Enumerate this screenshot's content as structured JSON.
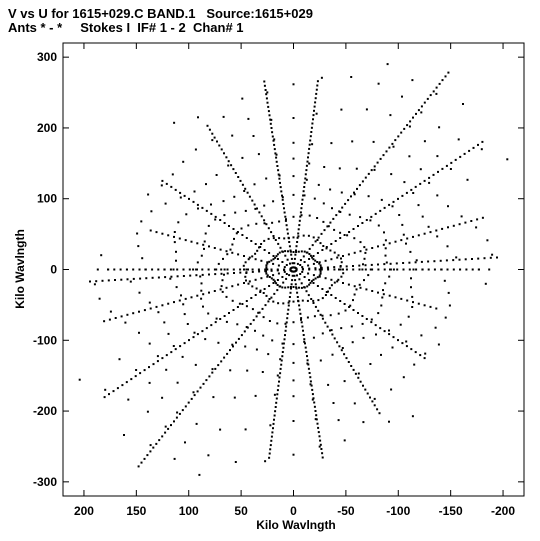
{
  "header": {
    "line1": "V vs U for 1615+029.C BAND.1   Source:1615+029",
    "line2": "Ants * - *     Stokes I  IF# 1 - 2  Chan# 1"
  },
  "chart_data": {
    "type": "scatter",
    "title": "V vs U for 1615+029.C BAND.1   Source:1615+029",
    "subtitle": "Ants * - *     Stokes I  IF# 1 - 2  Chan# 1",
    "xlabel": "Kilo Wavlngth",
    "ylabel": "Kilo Wavlngth",
    "xlim": [
      220,
      -220
    ],
    "ylim": [
      -320,
      320
    ],
    "x_ticks": [
      200,
      150,
      100,
      50,
      0,
      -50,
      -100,
      -150,
      -200
    ],
    "x_tick_labels": [
      "200",
      "150",
      "100",
      "50",
      "0",
      "-50",
      "-100",
      "-150",
      "-200"
    ],
    "y_ticks": [
      300,
      200,
      100,
      0,
      -100,
      -200,
      -300
    ],
    "y_tick_labels": [
      "300",
      "200",
      "100",
      "0",
      "-100",
      "-200",
      "-300"
    ],
    "grid": false,
    "marker_color": "#000000",
    "background": "#ffffff",
    "spokes_upper": [
      {
        "angle_deg": 0.0,
        "radius_max": 180
      },
      {
        "angle_deg": 22.0,
        "radius_max": 150
      },
      {
        "angle_deg": 45.0,
        "radius_max": 180
      },
      {
        "angle_deg": 68.0,
        "radius_max": 220
      },
      {
        "angle_deg": 84.0,
        "radius_max": 270
      },
      {
        "angle_deg": 95.0,
        "radius_max": 270
      },
      {
        "angle_deg": 118.0,
        "radius_max": 320
      },
      {
        "angle_deg": 135.0,
        "radius_max": 260
      },
      {
        "angle_deg": 158.0,
        "radius_max": 200
      },
      {
        "angle_deg": 175.0,
        "radius_max": 200
      }
    ],
    "arc_radii": [
      25,
      45,
      70,
      95,
      120,
      150,
      180,
      215,
      250,
      290
    ],
    "arc_step_deg": 6,
    "symmetric": true
  }
}
